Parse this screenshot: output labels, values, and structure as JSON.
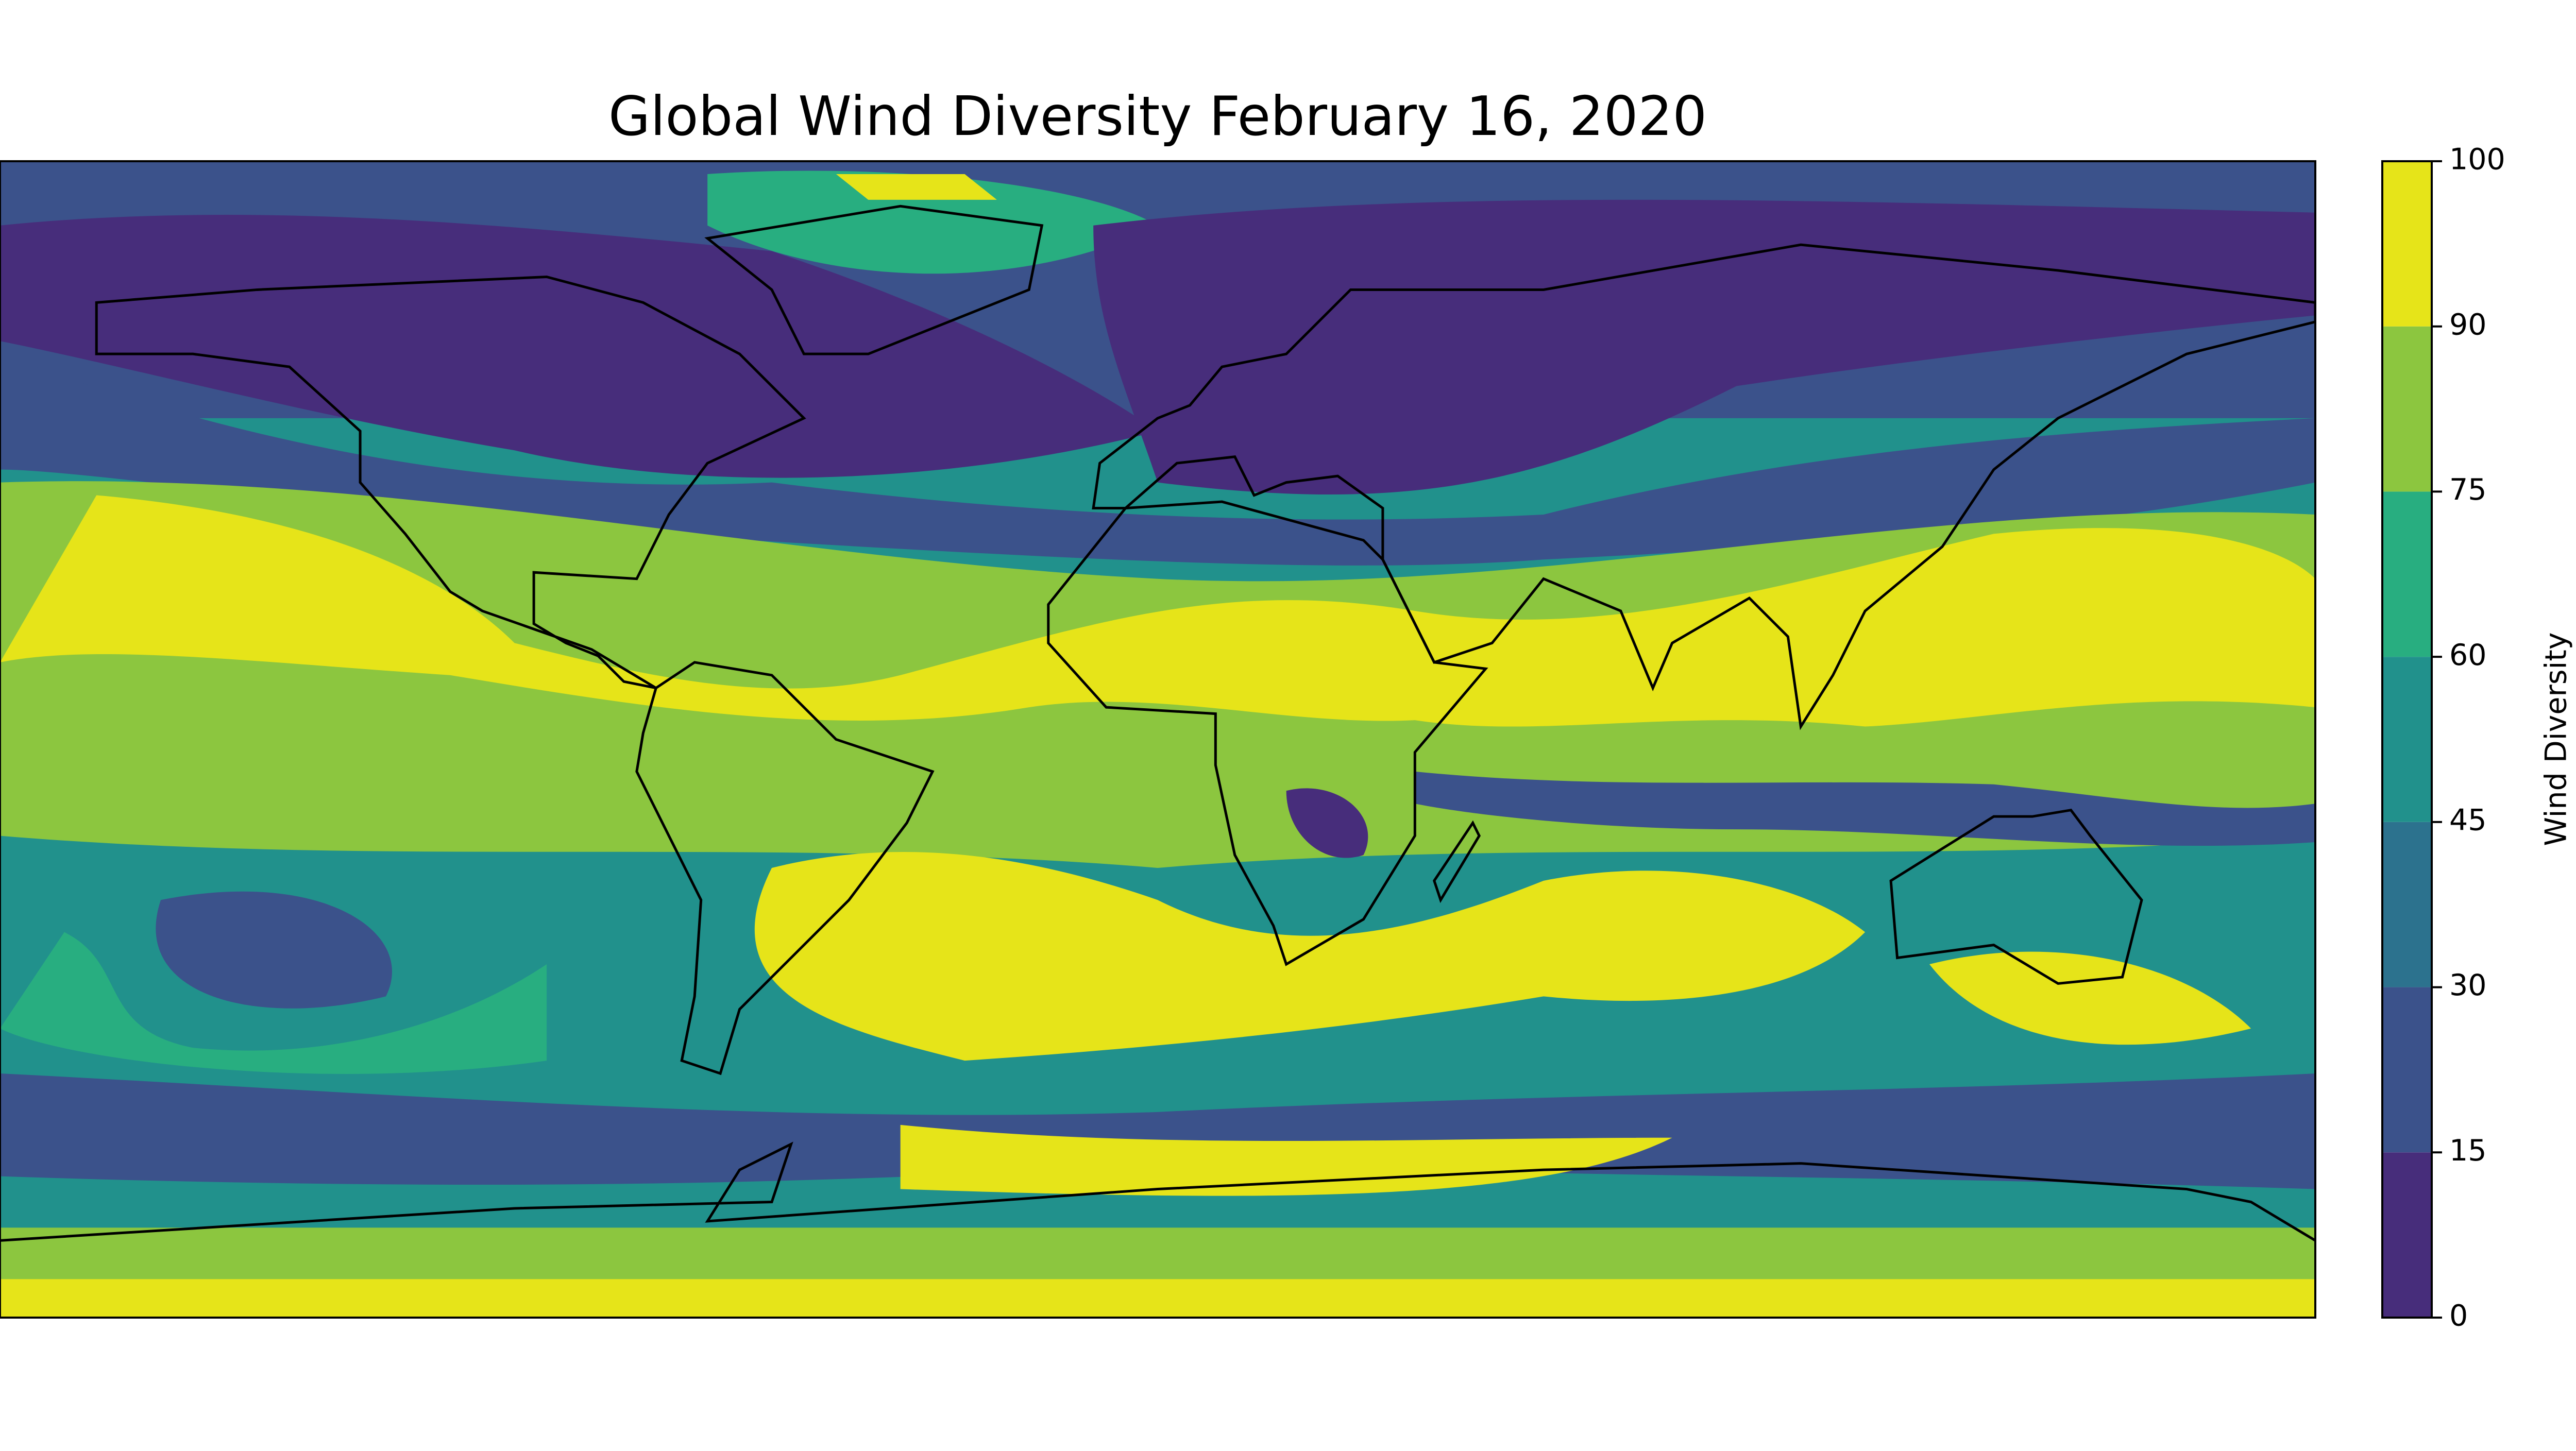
{
  "title": "Global Wind Diversity February 16, 2020",
  "colorbar": {
    "label": "Wind Diversity",
    "ticks": [
      0,
      15,
      30,
      45,
      60,
      75,
      90,
      100
    ],
    "colors": [
      "#472d7b",
      "#3b528b",
      "#2c728e",
      "#21918c",
      "#28ae80",
      "#8cc63f",
      "#e6e419"
    ]
  }
}
